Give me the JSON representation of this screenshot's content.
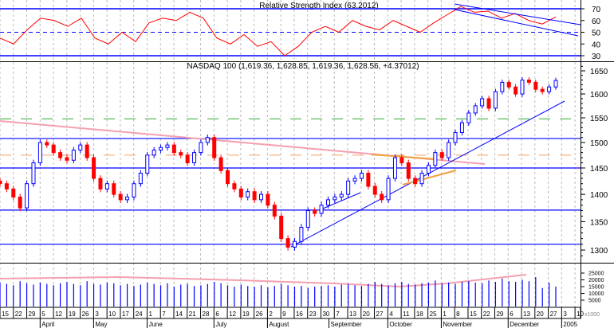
{
  "chart_data": [
    {
      "type": "line",
      "title": "Relative Strength Index (63.2012)",
      "ylim": [
        25,
        75
      ],
      "yticks": [
        "70",
        "60",
        "50",
        "40",
        "30"
      ],
      "levels": [
        70,
        50,
        30
      ],
      "color": "#ff0000",
      "values": [
        45,
        40,
        52,
        62,
        60,
        55,
        62,
        45,
        40,
        50,
        42,
        58,
        62,
        60,
        67,
        62,
        45,
        40,
        48,
        38,
        42,
        30,
        38,
        50,
        55,
        50,
        60,
        55,
        52,
        60,
        55,
        50,
        58,
        65,
        72,
        67,
        68,
        62,
        66,
        60,
        57,
        63
      ]
    },
    {
      "type": "candlestick",
      "title": "NASDAQ 100 (1,619.36, 1,628.85, 1,619.36, 1,628.56, +4.37012)",
      "scale": "log",
      "ylim": [
        1280,
        1670
      ],
      "yticks": [
        "1650",
        "1600",
        "1550",
        "1500",
        "1450",
        "1400",
        "1350",
        "1300"
      ],
      "up_color": "#0000ff",
      "down_color": "#ff0000",
      "horizontal_levels": [
        1508,
        1450,
        1371,
        1310
      ],
      "green_dashed_level": 1548,
      "orange_dashed_level": 1475,
      "closes": [
        1420,
        1410,
        1395,
        1375,
        1420,
        1460,
        1500,
        1495,
        1480,
        1470,
        1465,
        1485,
        1495,
        1470,
        1430,
        1410,
        1420,
        1400,
        1390,
        1395,
        1420,
        1440,
        1475,
        1485,
        1490,
        1495,
        1480,
        1475,
        1460,
        1480,
        1500,
        1510,
        1470,
        1445,
        1420,
        1410,
        1395,
        1405,
        1390,
        1400,
        1380,
        1360,
        1320,
        1305,
        1315,
        1340,
        1370,
        1365,
        1380,
        1390,
        1395,
        1400,
        1425,
        1430,
        1440,
        1415,
        1400,
        1390,
        1430,
        1470,
        1460,
        1430,
        1420,
        1440,
        1455,
        1480,
        1470,
        1500,
        1520,
        1540,
        1560,
        1575,
        1590,
        1570,
        1605,
        1625,
        1615,
        1600,
        1630,
        1625,
        1610,
        1605,
        1615,
        1629
      ]
    },
    {
      "type": "bar",
      "yticks": [
        "25000",
        "20000",
        "15000",
        "10000",
        "5000"
      ],
      "unit_label": "x1000",
      "color": "#0000ff",
      "values": [
        18000,
        17000,
        16000,
        19000,
        17500,
        16500,
        18000,
        17000,
        16000,
        17500,
        18500,
        17000,
        16000,
        19000,
        17000,
        16500,
        18000,
        17500,
        16000,
        17000,
        15500,
        16500,
        18000,
        17000,
        16000,
        17500,
        15000,
        16500,
        17000,
        15500,
        16000,
        17000,
        18500,
        17500,
        16000,
        15000,
        16500,
        15500,
        15000,
        16000,
        14500,
        15500,
        17000,
        16000,
        15000,
        15500,
        14000,
        15000,
        15500,
        16000,
        15000,
        16500,
        17000,
        16000,
        15500,
        17000,
        18500,
        17000,
        16000,
        17500,
        18500,
        17000,
        16500,
        17500,
        18000,
        19500,
        17500,
        18000,
        17000,
        18500,
        19000,
        18000,
        17500,
        19500,
        18500,
        21000,
        19000,
        18500,
        20000,
        19000,
        22000,
        14000,
        18000,
        15000
      ]
    }
  ],
  "x_axis": {
    "day_ticks": [
      "15",
      "22",
      "29",
      "5",
      "12",
      "19",
      "26",
      "3",
      "10",
      "17",
      "24",
      "1",
      "7",
      "14",
      "21",
      "28",
      "6",
      "12",
      "19",
      "26",
      "2",
      "9",
      "16",
      "23",
      "30",
      "7",
      "13",
      "20",
      "27",
      "4",
      "11",
      "18",
      "25",
      "1",
      "8",
      "15",
      "22",
      "29",
      "6",
      "13",
      "20",
      "27",
      "3",
      "10"
    ],
    "months": [
      "April",
      "May",
      "June",
      "July",
      "August",
      "September",
      "October",
      "November",
      "December",
      "2005"
    ]
  }
}
